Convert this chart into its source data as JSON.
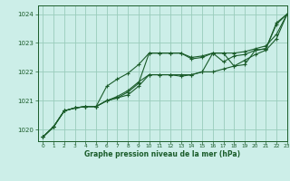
{
  "bg_color": "#cceee8",
  "grid_color": "#99ccbb",
  "line_color": "#1a5c2a",
  "title": "Graphe pression niveau de la mer (hPa)",
  "xlim": [
    -0.5,
    23
  ],
  "ylim": [
    1019.6,
    1024.3
  ],
  "yticks": [
    1020,
    1021,
    1022,
    1023,
    1024
  ],
  "xticks": [
    0,
    1,
    2,
    3,
    4,
    5,
    6,
    7,
    8,
    9,
    10,
    11,
    12,
    13,
    14,
    15,
    16,
    17,
    18,
    19,
    20,
    21,
    22,
    23
  ],
  "series": [
    [
      1019.75,
      1020.1,
      1020.65,
      1020.75,
      1020.8,
      1020.8,
      1021.5,
      1021.75,
      1021.95,
      1022.25,
      1022.65,
      1022.65,
      1022.65,
      1022.65,
      1022.5,
      1022.55,
      1022.65,
      1022.35,
      1022.55,
      1022.6,
      1022.75,
      1022.8,
      1023.7,
      1024.0
    ],
    [
      1019.75,
      1020.1,
      1020.65,
      1020.75,
      1020.8,
      1020.8,
      1021.0,
      1021.1,
      1021.2,
      1021.5,
      1021.9,
      1021.9,
      1021.9,
      1021.9,
      1021.9,
      1022.0,
      1022.0,
      1022.1,
      1022.2,
      1022.4,
      1022.6,
      1022.75,
      1023.15,
      1024.0
    ],
    [
      1019.75,
      1020.1,
      1020.65,
      1020.75,
      1020.8,
      1020.8,
      1021.0,
      1021.1,
      1021.3,
      1021.6,
      1022.65,
      1022.65,
      1022.65,
      1022.65,
      1022.45,
      1022.5,
      1022.65,
      1022.65,
      1022.2,
      1022.25,
      1022.75,
      1022.8,
      1023.65,
      1024.0
    ],
    [
      1019.75,
      1020.1,
      1020.65,
      1020.75,
      1020.8,
      1020.8,
      1021.0,
      1021.15,
      1021.35,
      1021.65,
      1021.9,
      1021.9,
      1021.9,
      1021.85,
      1021.9,
      1022.0,
      1022.65,
      1022.65,
      1022.65,
      1022.7,
      1022.8,
      1022.9,
      1023.3,
      1024.0
    ]
  ]
}
